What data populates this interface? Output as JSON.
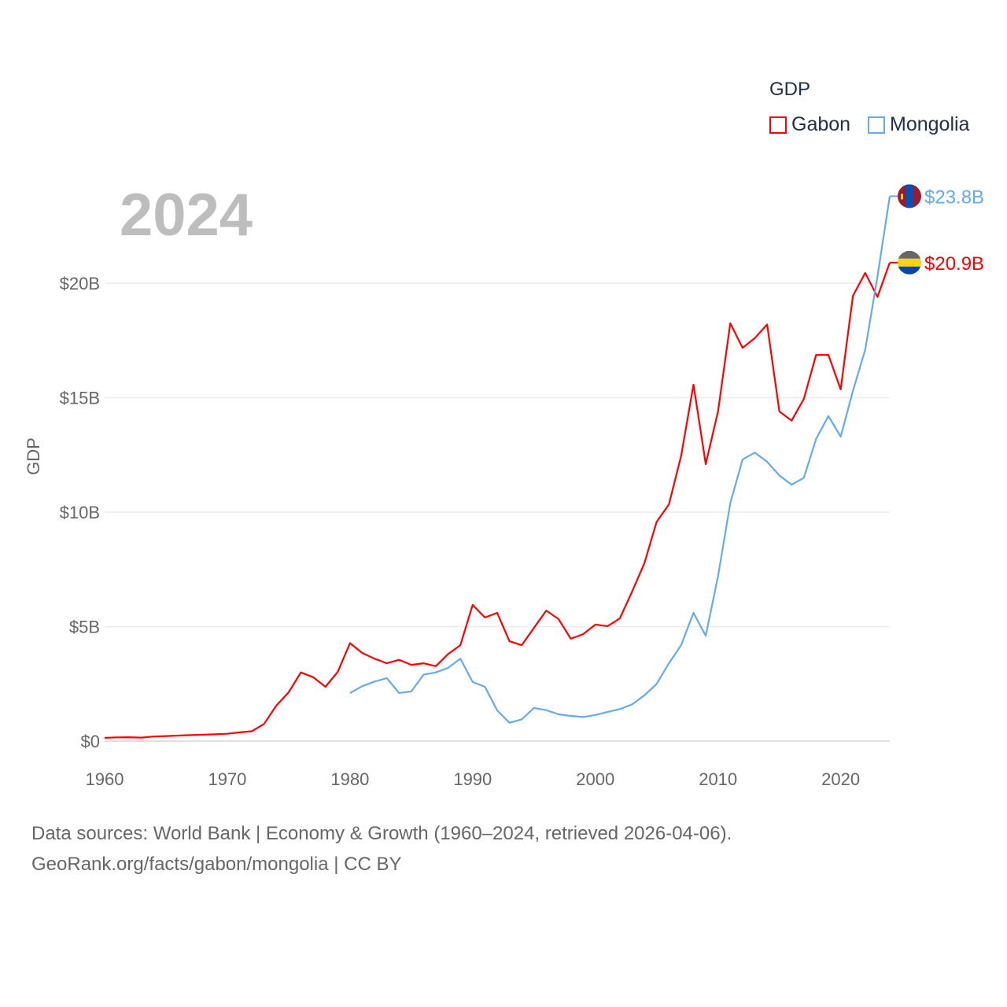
{
  "chart_data": {
    "type": "line",
    "title": "GDP",
    "ylabel": "GDP",
    "xlabel": "",
    "year_label": "2024",
    "xlim": [
      1960,
      2024
    ],
    "ylim": [
      0,
      20
    ],
    "x_ticks": [
      "1960",
      "1970",
      "1980",
      "1990",
      "2000",
      "2010",
      "2020"
    ],
    "y_ticks": [
      {
        "v": 0,
        "label": "$0"
      },
      {
        "v": 5,
        "label": "$5B"
      },
      {
        "v": 10,
        "label": "$10B"
      },
      {
        "v": 15,
        "label": "$15B"
      },
      {
        "v": 20,
        "label": "$20B"
      }
    ],
    "units": "USD billions",
    "legend_position": "top-right",
    "series": [
      {
        "name": "Gabon",
        "color": "#ff0000",
        "end_label": "$20.9B",
        "start_year": 1960,
        "values": [
          0.14,
          0.16,
          0.17,
          0.15,
          0.2,
          0.22,
          0.24,
          0.26,
          0.28,
          0.3,
          0.32,
          0.38,
          0.43,
          0.75,
          1.55,
          2.13,
          3.0,
          2.79,
          2.37,
          3.02,
          4.28,
          3.85,
          3.6,
          3.4,
          3.55,
          3.33,
          3.4,
          3.27,
          3.8,
          4.19,
          5.95,
          5.4,
          5.6,
          4.36,
          4.19,
          4.95,
          5.7,
          5.33,
          4.47,
          4.67,
          5.09,
          5.02,
          5.36,
          6.53,
          7.77,
          9.58,
          10.34,
          12.47,
          15.57,
          12.1,
          14.4,
          18.25,
          17.18,
          17.6,
          18.2,
          14.4,
          14.0,
          14.95,
          16.87,
          16.87,
          15.36,
          19.45,
          20.45,
          19.4,
          20.9
        ]
      },
      {
        "name": "Mongolia",
        "color": "#64aaec",
        "end_label": "$23.8B",
        "start_year": 1980,
        "values": [
          2.1,
          2.4,
          2.6,
          2.75,
          2.1,
          2.17,
          2.9,
          3.0,
          3.2,
          3.6,
          2.58,
          2.37,
          1.34,
          0.8,
          0.95,
          1.45,
          1.35,
          1.17,
          1.1,
          1.05,
          1.14,
          1.27,
          1.4,
          1.6,
          2.0,
          2.5,
          3.4,
          4.2,
          5.6,
          4.6,
          7.2,
          10.4,
          12.3,
          12.6,
          12.2,
          11.6,
          11.2,
          11.5,
          13.2,
          14.2,
          13.3,
          15.3,
          17.1,
          20.3,
          23.8
        ]
      }
    ]
  },
  "footer": {
    "line1": "Data sources: World Bank | Economy & Growth (1960–2024, retrieved 2026-04-06).",
    "line2": "GeoRank.org/facts/gabon/mongolia | CC BY"
  }
}
